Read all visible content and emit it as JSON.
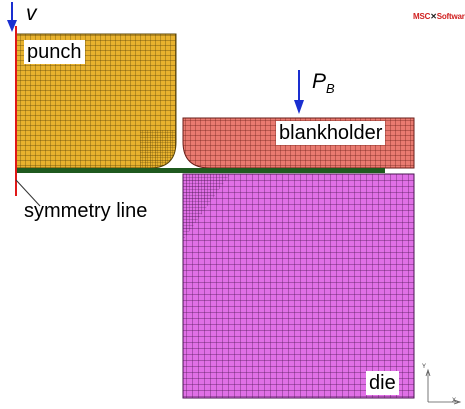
{
  "labels": {
    "velocity": "v",
    "force_symbol": "P",
    "force_subscript": "B",
    "punch": "punch",
    "blankholder": "blankholder",
    "die": "die",
    "symmetry_line": "symmetry line"
  },
  "logo": {
    "text": "MSC",
    "suffix": "Software"
  },
  "axes": {
    "y": "Y",
    "x": "X"
  },
  "colors": {
    "punch_fill": "#e8b22e",
    "punch_mesh": "#5a4408",
    "blankholder_fill": "#e97a70",
    "blankholder_mesh": "#6a1e18",
    "die_fill": "#e070e6",
    "die_mesh": "#4a1650",
    "sheet": "#1f5a1f",
    "symmetry_line": "#e01818",
    "arrow": "#1a2fd0"
  }
}
